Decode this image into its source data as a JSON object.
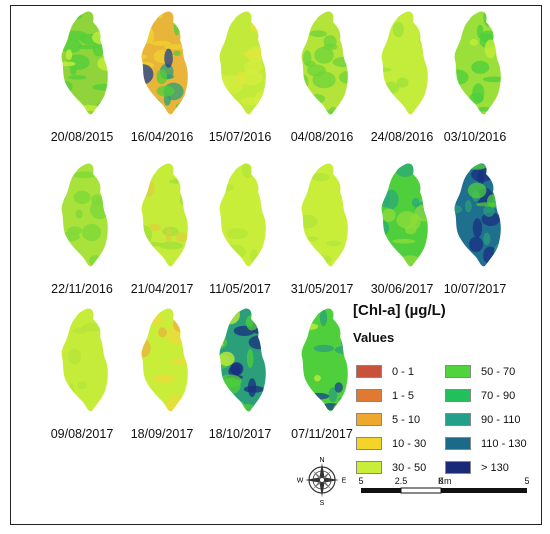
{
  "maps": [
    {
      "date": "20/08/2015",
      "base": "#8fd43a",
      "patches": [
        {
          "c": "#4fcf3a",
          "n": 14
        },
        {
          "c": "#c9f03a",
          "n": 6
        }
      ]
    },
    {
      "date": "16/04/2016",
      "base": "#e8b43a",
      "patches": [
        {
          "c": "#f2d32e",
          "n": 8
        },
        {
          "c": "#2a9f7a",
          "n": 6
        },
        {
          "c": "#1f3f8f",
          "n": 4
        },
        {
          "c": "#4fcf3a",
          "n": 6
        }
      ]
    },
    {
      "date": "15/07/2016",
      "base": "#c2ea3a",
      "patches": [
        {
          "c": "#d4ee40",
          "n": 8
        },
        {
          "c": "#e8e23a",
          "n": 4
        }
      ]
    },
    {
      "date": "04/08/2016",
      "base": "#b4e43a",
      "patches": [
        {
          "c": "#6cd43a",
          "n": 14
        }
      ]
    },
    {
      "date": "24/08/2016",
      "base": "#c4ec3a",
      "patches": [
        {
          "c": "#9ee23a",
          "n": 8
        }
      ]
    },
    {
      "date": "03/10/2016",
      "base": "#9be03a",
      "patches": [
        {
          "c": "#4ccf3c",
          "n": 12
        },
        {
          "c": "#c8ee3a",
          "n": 4
        }
      ]
    },
    {
      "date": "22/11/2016",
      "base": "#a8e23a",
      "patches": [
        {
          "c": "#7cd83a",
          "n": 12
        }
      ]
    },
    {
      "date": "21/04/2017",
      "base": "#c6ec3a",
      "patches": [
        {
          "c": "#9ee03a",
          "n": 8
        },
        {
          "c": "#d8d23a",
          "n": 6
        }
      ]
    },
    {
      "date": "11/05/2017",
      "base": "#c8ee3a",
      "patches": [
        {
          "c": "#b4e63a",
          "n": 5
        }
      ]
    },
    {
      "date": "31/05/2017",
      "base": "#c8ee3a",
      "patches": [
        {
          "c": "#b2e63a",
          "n": 5
        }
      ]
    },
    {
      "date": "30/06/2017",
      "base": "#4fcf3c",
      "patches": [
        {
          "c": "#2aa87a",
          "n": 8
        },
        {
          "c": "#8fdc3a",
          "n": 8
        }
      ]
    },
    {
      "date": "10/07/2017",
      "base": "#1f6f8f",
      "patches": [
        {
          "c": "#1a2f80",
          "n": 10
        },
        {
          "c": "#2a9f7a",
          "n": 8
        },
        {
          "c": "#4fcf3a",
          "n": 4
        }
      ]
    },
    {
      "date": "09/08/2017",
      "base": "#c6ec3a",
      "patches": [
        {
          "c": "#b4e63a",
          "n": 5
        }
      ]
    },
    {
      "date": "18/09/2017",
      "base": "#c8ee3a",
      "patches": [
        {
          "c": "#f0d83a",
          "n": 8
        },
        {
          "c": "#e8b43a",
          "n": 3
        }
      ]
    },
    {
      "date": "18/10/2017",
      "base": "#2a9f7a",
      "patches": [
        {
          "c": "#1a2f80",
          "n": 10
        },
        {
          "c": "#4fcf3a",
          "n": 8
        },
        {
          "c": "#c8ee3a",
          "n": 4
        }
      ]
    },
    {
      "date": "07/11/2017",
      "base": "#4fcf3c",
      "patches": [
        {
          "c": "#2a9f7a",
          "n": 8
        },
        {
          "c": "#1a3f8f",
          "n": 4
        },
        {
          "c": "#c8ee3a",
          "n": 4
        }
      ]
    }
  ],
  "legend": {
    "title": "[Chl-a] (µg/L)",
    "values_heading": "Values",
    "classes": [
      {
        "label": "0 - 1",
        "color": "#c8533a"
      },
      {
        "label": "1 - 5",
        "color": "#e07a32"
      },
      {
        "label": "5 - 10",
        "color": "#eea830"
      },
      {
        "label": "10 - 30",
        "color": "#f5d42a"
      },
      {
        "label": "30 - 50",
        "color": "#c8ee3a"
      },
      {
        "label": "50 - 70",
        "color": "#4fd43c"
      },
      {
        "label": "70 - 90",
        "color": "#22c05a"
      },
      {
        "label": "90 - 110",
        "color": "#22a08a"
      },
      {
        "label": "110 - 130",
        "color": "#1c6a8a"
      },
      {
        "label": "> 130",
        "color": "#1a2a78"
      }
    ]
  },
  "compass": {
    "n": "N",
    "s": "S",
    "e": "E",
    "w": "W"
  },
  "scale": {
    "unit": "Km",
    "ticks": [
      "5",
      "2.5",
      "0",
      "5"
    ]
  }
}
